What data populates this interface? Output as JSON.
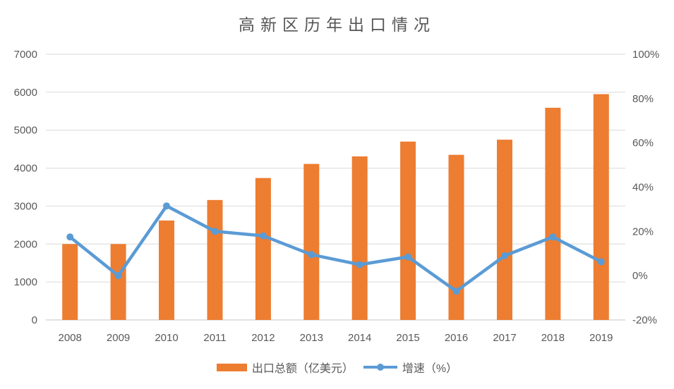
{
  "chart_data": {
    "type": "bar",
    "combo": "bar+line, dual axis",
    "title": "高新区历年出口情况",
    "categories": [
      "2008",
      "2009",
      "2010",
      "2011",
      "2012",
      "2013",
      "2014",
      "2015",
      "2016",
      "2017",
      "2018",
      "2019"
    ],
    "series": [
      {
        "name": "出口总额（亿美元）",
        "type": "bar",
        "axis": "left",
        "values": [
          2000,
          2000,
          2620,
          3160,
          3740,
          4110,
          4310,
          4700,
          4350,
          4750,
          5590,
          5950
        ]
      },
      {
        "name": "增速（%）",
        "type": "line",
        "axis": "right",
        "values": [
          17.5,
          0,
          31.5,
          20,
          18,
          9.5,
          5,
          8.5,
          -7,
          9,
          17.5,
          6.3
        ]
      }
    ],
    "left_axis": {
      "min": 0,
      "max": 7000,
      "step": 1000,
      "tick_values": [
        0,
        1000,
        2000,
        3000,
        4000,
        5000,
        6000,
        7000
      ],
      "tick_labels": [
        "0",
        "1000",
        "2000",
        "3000",
        "4000",
        "5000",
        "6000",
        "7000"
      ]
    },
    "right_axis": {
      "min": -20,
      "max": 100,
      "step": 20,
      "tick_values": [
        -20,
        0,
        20,
        40,
        60,
        80,
        100
      ],
      "tick_labels": [
        "-20%",
        "0%",
        "20%",
        "40%",
        "60%",
        "80%",
        "100%"
      ]
    },
    "grid": true,
    "legend_position": "bottom"
  },
  "colors": {
    "bar": "#ED7D31",
    "line": "#5B9BD5",
    "gridline": "#D9D9D9",
    "axis_line": "#C6C6C6",
    "axis_text": "#595959",
    "title_text": "#555555",
    "background": "#FFFFFF"
  }
}
